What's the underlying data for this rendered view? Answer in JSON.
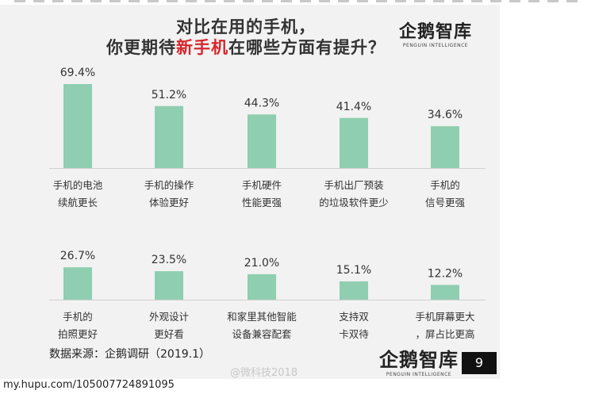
{
  "header": {
    "title_line1": "对比在用的手机，",
    "title_line2_pre": "你更期待",
    "title_line2_highlight": "新手机",
    "title_line2_post": "在哪些方面有提升？"
  },
  "logo": {
    "name": "企鹅智库",
    "sub": "PENGUIN INTELLIGENCE"
  },
  "footer": {
    "source": "数据来源：企鹅调研（2019.1）",
    "page": "9",
    "weibo": "@微科技2018",
    "url": "my.hupu.com/105007724891095"
  },
  "colors": {
    "bar": "#8fceb0",
    "highlight": "#d6262b"
  },
  "chart_data": {
    "type": "bar",
    "unit": "%",
    "rows": [
      {
        "categories": [
          [
            "手机的电池",
            "续航更长"
          ],
          [
            "手机的操作",
            "体验更好"
          ],
          [
            "手机硬件",
            "性能更强"
          ],
          [
            "手机出厂预装",
            "的垃圾软件更少"
          ],
          [
            "手机的",
            "信号更强"
          ]
        ],
        "values": [
          69.4,
          51.2,
          44.3,
          41.4,
          34.6
        ]
      },
      {
        "categories": [
          [
            "手机的",
            "拍照更好"
          ],
          [
            "外观设计",
            "更好看"
          ],
          [
            "和家里其他智能",
            "设备兼容配套"
          ],
          [
            "支持双",
            "卡双待"
          ],
          [
            "手机屏幕更大",
            "，屏占比更高"
          ]
        ],
        "values": [
          26.7,
          23.5,
          21.0,
          15.1,
          12.2
        ]
      }
    ]
  }
}
